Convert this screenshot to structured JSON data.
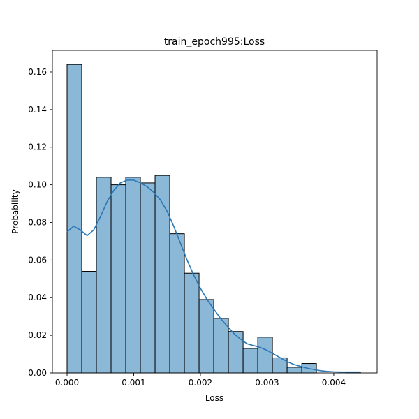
{
  "chart_data": {
    "type": "bar",
    "title": "train_epoch995:Loss",
    "xlabel": "Loss",
    "ylabel": "Probability",
    "xlim": [
      -0.00022,
      0.00465
    ],
    "ylim": [
      0,
      0.1715
    ],
    "xticks": [
      0.0,
      0.001,
      0.002,
      0.003,
      0.004
    ],
    "xtick_labels": [
      "0.000",
      "0.001",
      "0.002",
      "0.003",
      "0.004"
    ],
    "yticks": [
      0.0,
      0.02,
      0.04,
      0.06,
      0.08,
      0.1,
      0.12,
      0.14,
      0.16
    ],
    "ytick_labels": [
      "0.00",
      "0.02",
      "0.04",
      "0.06",
      "0.08",
      "0.10",
      "0.12",
      "0.14",
      "0.16"
    ],
    "bin_width": 0.00022,
    "bins": [
      {
        "left": 0.0,
        "value": 0.164
      },
      {
        "left": 0.00022,
        "value": 0.054
      },
      {
        "left": 0.00044,
        "value": 0.104
      },
      {
        "left": 0.00066,
        "value": 0.1
      },
      {
        "left": 0.00088,
        "value": 0.104
      },
      {
        "left": 0.0011,
        "value": 0.101
      },
      {
        "left": 0.00132,
        "value": 0.105
      },
      {
        "left": 0.00154,
        "value": 0.074
      },
      {
        "left": 0.00176,
        "value": 0.053
      },
      {
        "left": 0.00198,
        "value": 0.039
      },
      {
        "left": 0.0022,
        "value": 0.029
      },
      {
        "left": 0.00242,
        "value": 0.022
      },
      {
        "left": 0.00264,
        "value": 0.013
      },
      {
        "left": 0.00286,
        "value": 0.019
      },
      {
        "left": 0.00308,
        "value": 0.008
      },
      {
        "left": 0.0033,
        "value": 0.003
      },
      {
        "left": 0.00352,
        "value": 0.005
      },
      {
        "left": 0.00374,
        "value": 0.0
      },
      {
        "left": 0.00396,
        "value": 0.0
      },
      {
        "left": 0.00418,
        "value": 0.0005
      }
    ],
    "kde": {
      "name": "density estimate",
      "x": [
        0.0,
        0.0001,
        0.0002,
        0.0003,
        0.0004,
        0.0005,
        0.0006,
        0.0007,
        0.0008,
        0.0009,
        0.001,
        0.0011,
        0.0012,
        0.0013,
        0.0014,
        0.0015,
        0.0016,
        0.0017,
        0.0018,
        0.0019,
        0.002,
        0.0021,
        0.0022,
        0.0023,
        0.0024,
        0.0025,
        0.0026,
        0.0027,
        0.0028,
        0.0029,
        0.003,
        0.0031,
        0.0032,
        0.0033,
        0.0034,
        0.0035,
        0.0036,
        0.0037,
        0.0038,
        0.0039,
        0.004,
        0.0041,
        0.0042,
        0.0043,
        0.0044
      ],
      "y": [
        0.075,
        0.078,
        0.076,
        0.073,
        0.076,
        0.083,
        0.091,
        0.097,
        0.101,
        0.1025,
        0.1025,
        0.101,
        0.099,
        0.096,
        0.092,
        0.086,
        0.078,
        0.069,
        0.06,
        0.052,
        0.045,
        0.039,
        0.034,
        0.029,
        0.025,
        0.021,
        0.018,
        0.0155,
        0.0145,
        0.0135,
        0.012,
        0.01,
        0.008,
        0.006,
        0.0045,
        0.0035,
        0.0025,
        0.0018,
        0.0012,
        0.0008,
        0.0006,
        0.0005,
        0.0005,
        0.0005,
        0.0005
      ]
    },
    "colors": {
      "bar_fill": "#8cb8d8",
      "bar_edge": "#000000",
      "kde": "#2a77b4"
    },
    "grid": false,
    "legend": "none"
  }
}
